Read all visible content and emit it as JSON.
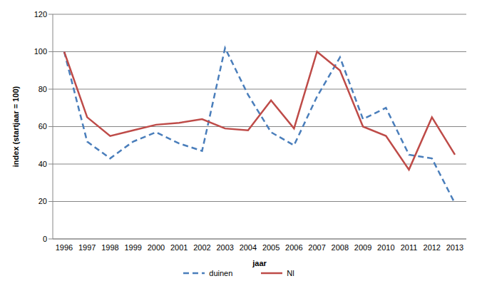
{
  "chart_data": {
    "type": "line",
    "x_label": "jaar",
    "y_label": "index (startjaar = 100)",
    "categories": [
      "1996",
      "1997",
      "1998",
      "1999",
      "2000",
      "2001",
      "2002",
      "2003",
      "2004",
      "2005",
      "2006",
      "2007",
      "2008",
      "2009",
      "2010",
      "2011",
      "2012",
      "2013"
    ],
    "series": [
      {
        "name": "duinen",
        "color": "#4a7ebb",
        "line_style": "dashed",
        "values": [
          100,
          52,
          43,
          52,
          57,
          51,
          47,
          102,
          77,
          57,
          50,
          76,
          97,
          64,
          70,
          45,
          43,
          19
        ]
      },
      {
        "name": "Nl",
        "color": "#be4b48",
        "line_style": "solid",
        "values": [
          100,
          65,
          55,
          58,
          61,
          62,
          64,
          59,
          58,
          74,
          59,
          100,
          90,
          60,
          55,
          37,
          65,
          45
        ]
      }
    ],
    "ylim": [
      0,
      120
    ],
    "yticks": [
      0,
      20,
      40,
      60,
      80,
      100,
      120
    ],
    "grid": true,
    "legend": "bottom"
  }
}
